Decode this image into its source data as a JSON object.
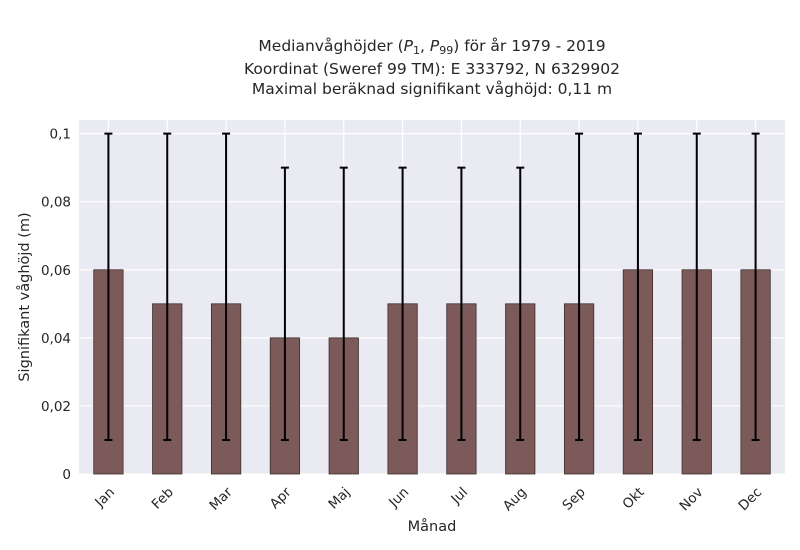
{
  "chart_data": {
    "type": "bar",
    "title": "Medianvåghöjder (P1, P99) för år 1979 - 2019",
    "title_parts": {
      "prefix": "Medianvåghöjder (",
      "p_low": "P",
      "p_low_sub": "1",
      "separator": ", ",
      "p_high": "P",
      "p_high_sub": "99",
      "suffix": ") för år 1979 - 2019"
    },
    "subtitle_lines": [
      "Koordinat (Sweref 99 TM): E 333792, N 6329902",
      "Maximal beräknad signifikant våghöjd: 0,11 m"
    ],
    "xlabel": "Månad",
    "ylabel": "Signifikant våghöjd (m)",
    "categories": [
      "Jan",
      "Feb",
      "Mar",
      "Apr",
      "Maj",
      "Jun",
      "Jul",
      "Aug",
      "Sep",
      "Okt",
      "Nov",
      "Dec"
    ],
    "values": [
      0.06,
      0.05,
      0.05,
      0.04,
      0.04,
      0.05,
      0.05,
      0.05,
      0.05,
      0.06,
      0.06,
      0.06
    ],
    "error_low": [
      0.01,
      0.01,
      0.01,
      0.01,
      0.01,
      0.01,
      0.01,
      0.01,
      0.01,
      0.01,
      0.01,
      0.01
    ],
    "error_high": [
      0.1,
      0.1,
      0.1,
      0.09,
      0.09,
      0.09,
      0.09,
      0.09,
      0.1,
      0.1,
      0.1,
      0.1
    ],
    "ylim": [
      0,
      0.104
    ],
    "yticks": [
      0,
      0.02,
      0.04,
      0.06,
      0.08,
      0.1
    ],
    "ytick_labels": [
      "0",
      "0,02",
      "0,04",
      "0,06",
      "0,08",
      "0,1"
    ],
    "grid": true,
    "colors": {
      "bar_fill": "#7d5a5a",
      "bar_edge": "#3d2e2e",
      "error_bar": "#000000",
      "plot_background": "#eaeaf2",
      "grid": "#ffffff"
    }
  }
}
